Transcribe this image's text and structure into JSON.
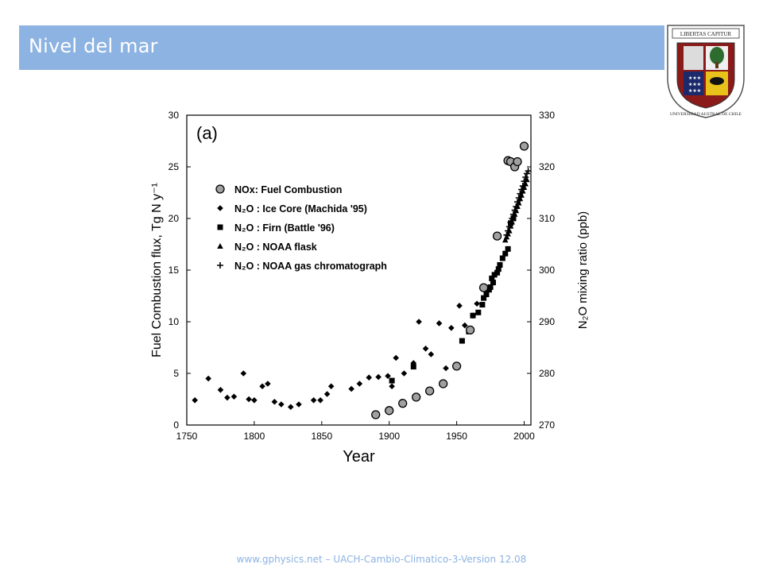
{
  "slide": {
    "title": "Nivel del mar",
    "footer": "www.gphysics.net – UACH-Cambio-Climatico-3-Version 12.08",
    "logo_top_text": "LIBERTAS CAPITUR",
    "logo_ring_text": "UNIVERSIDAD AUSTRAL DE CHILE"
  },
  "colors": {
    "banner": "#8db3e2",
    "footer_text": "#8db3e2",
    "logo_border": "#8b1a1a"
  },
  "chart_data": {
    "type": "scatter",
    "panel_label": "(a)",
    "xlabel": "Year",
    "ylabel_left": "Fuel Combustion flux, Tg N  y⁻¹",
    "ylabel_right": "N₂O mixing ratio (ppb)",
    "xlim": [
      1750,
      2005
    ],
    "ylim_left": [
      0,
      30
    ],
    "ylim_right": [
      270,
      330
    ],
    "x_ticks": [
      1750,
      1800,
      1850,
      1900,
      1950,
      2000
    ],
    "y_ticks_left": [
      0,
      5,
      10,
      15,
      20,
      25,
      30
    ],
    "y_ticks_right": [
      270,
      280,
      290,
      300,
      310,
      320,
      330
    ],
    "legend_position": "top-left",
    "series": [
      {
        "name": "NOx: Fuel Combustion",
        "marker": "circle",
        "axis": "left",
        "x": [
          1890,
          1900,
          1910,
          1920,
          1930,
          1940,
          1950,
          1960,
          1970,
          1980,
          1988,
          1990,
          1993,
          1995,
          2000
        ],
        "y": [
          1.0,
          1.4,
          2.1,
          2.7,
          3.3,
          4.0,
          5.7,
          9.2,
          13.3,
          18.3,
          25.6,
          25.5,
          25.0,
          25.5,
          27.0
        ]
      },
      {
        "name": "N₂O : Ice Core (Machida '95)",
        "marker": "diamond",
        "axis": "right",
        "x": [
          1756,
          1766,
          1775,
          1780,
          1785,
          1792,
          1796,
          1800,
          1806,
          1810,
          1815,
          1820,
          1827,
          1833,
          1844,
          1849,
          1854,
          1857,
          1872,
          1878,
          1885,
          1892,
          1899,
          1902,
          1905,
          1911,
          1918,
          1922,
          1927,
          1931,
          1937,
          1942,
          1946,
          1952,
          1956,
          1962,
          1965
        ],
        "y": [
          274.8,
          279.0,
          276.8,
          275.3,
          275.5,
          280.0,
          275.0,
          274.8,
          277.5,
          278.0,
          274.5,
          274.0,
          273.5,
          274.0,
          274.8,
          274.8,
          276.0,
          277.5,
          277.0,
          278.0,
          279.2,
          279.3,
          279.5,
          277.5,
          283.0,
          280.0,
          282.0,
          290.0,
          284.8,
          283.7,
          289.7,
          281.0,
          288.8,
          293.1,
          289.3,
          291.2,
          293.5
        ]
      },
      {
        "name": "N₂O : Firn (Battle '96)",
        "marker": "square",
        "axis": "right",
        "x": [
          1902,
          1918,
          1954,
          1959,
          1962,
          1966,
          1969,
          1970,
          1972,
          1974,
          1975,
          1976,
          1977,
          1978,
          1980,
          1981,
          1982,
          1984,
          1986,
          1988,
          1990,
          1992
        ],
        "y": [
          278.6,
          281.3,
          286.3,
          288.1,
          291.2,
          291.8,
          293.3,
          294.6,
          295.3,
          296.2,
          296.7,
          298.4,
          297.6,
          299.1,
          299.5,
          300.2,
          301.0,
          302.3,
          303.2,
          304.1,
          309.1,
          310.0
        ]
      },
      {
        "name": "N₂O : NOAA flask",
        "marker": "triangle",
        "axis": "right",
        "x": [
          1986,
          1987,
          1988,
          1989,
          1990,
          1991,
          1992,
          1993,
          1994,
          1995,
          1996,
          1997,
          1998,
          1999,
          2000,
          2001,
          2002
        ],
        "y": [
          305.8,
          306.4,
          307.0,
          307.6,
          308.5,
          309.3,
          310.1,
          310.8,
          311.5,
          312.3,
          313.0,
          313.8,
          314.5,
          315.3,
          316.0,
          316.7,
          317.5
        ]
      },
      {
        "name": "N₂O : NOAA gas chromatograph",
        "marker": "plus",
        "axis": "right",
        "x": [
          1987,
          1988,
          1989,
          1990,
          1991,
          1992,
          1993,
          1994,
          1995,
          1996,
          1997,
          1998,
          1999,
          2000,
          2001,
          2002,
          2003
        ],
        "y": [
          306.8,
          307.6,
          308.4,
          309.2,
          310.0,
          310.8,
          311.6,
          312.3,
          313.2,
          314.0,
          314.8,
          315.6,
          316.3,
          317.2,
          318.0,
          318.7,
          319.2
        ]
      }
    ]
  }
}
